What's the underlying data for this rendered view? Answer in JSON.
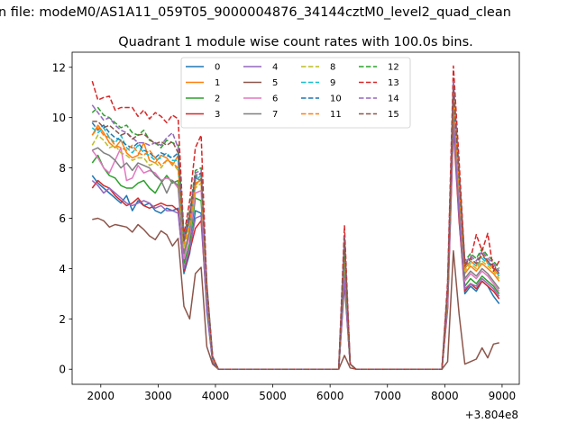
{
  "figure": {
    "suptitle": "n file: modeM0/AS1A11_059T05_9000004876_34144cztM0_level2_quad_clean",
    "title": "Quadrant 1 module wise count rates with 100.0s bins.",
    "offset_text": "+3.804e8"
  },
  "chart_data": {
    "type": "line",
    "title": "Quadrant 1 module wise count rates with 100.0s bins.",
    "xlabel": "",
    "ylabel": "",
    "x_offset": 380400000,
    "xlim": [
      1500,
      9300
    ],
    "ylim": [
      -0.6,
      12.6
    ],
    "xticks": [
      2000,
      3000,
      4000,
      5000,
      6000,
      7000,
      8000,
      9000
    ],
    "yticks": [
      0,
      2,
      4,
      6,
      8,
      10,
      12
    ],
    "grid": false,
    "legend": {
      "placement": "upper-center",
      "columns": 4
    },
    "x": [
      1850,
      1950,
      2050,
      2150,
      2250,
      2350,
      2450,
      2550,
      2650,
      2750,
      2850,
      2950,
      3050,
      3150,
      3250,
      3350,
      3450,
      3550,
      3650,
      3750,
      3850,
      3950,
      4050,
      4150,
      4250,
      4350,
      4450,
      4550,
      4650,
      4750,
      4850,
      4950,
      5050,
      5150,
      5250,
      5350,
      5450,
      5550,
      5650,
      5750,
      5850,
      5950,
      6050,
      6150,
      6250,
      6350,
      6450,
      6550,
      6650,
      6750,
      6850,
      6950,
      7050,
      7150,
      7250,
      7350,
      7450,
      7550,
      7650,
      7750,
      7850,
      7950,
      8050,
      8150,
      8250,
      8350,
      8450,
      8550,
      8650,
      8750,
      8850,
      8950
    ],
    "series": [
      {
        "name": "0",
        "color": "#1f77b4",
        "dash": "solid",
        "values": [
          7.7,
          7.4,
          7.2,
          7.0,
          6.8,
          6.6,
          6.9,
          6.3,
          6.7,
          6.5,
          6.6,
          6.3,
          6.2,
          6.4,
          6.3,
          6.4,
          3.8,
          4.6,
          6.3,
          6.2,
          2.3,
          0.3,
          0,
          0,
          0,
          0,
          0,
          0,
          0,
          0,
          0,
          0,
          0,
          0,
          0,
          0,
          0,
          0,
          0,
          0,
          0,
          0,
          0,
          0,
          3.4,
          0.2,
          0,
          0,
          0,
          0,
          0,
          0,
          0,
          0,
          0,
          0,
          0,
          0,
          0,
          0,
          0,
          0,
          2.5,
          9.9,
          6.0,
          3.0,
          3.3,
          3.1,
          3.5,
          3.3,
          2.9,
          2.6
        ]
      },
      {
        "name": "1",
        "color": "#ff7f0e",
        "dash": "solid",
        "values": [
          9.3,
          9.7,
          9.4,
          9.0,
          8.8,
          9.1,
          8.6,
          8.4,
          8.5,
          9.0,
          8.3,
          8.2,
          8.5,
          8.4,
          8.1,
          8.5,
          4.5,
          5.6,
          7.3,
          7.6,
          3.2,
          0.5,
          0,
          0,
          0,
          0,
          0,
          0,
          0,
          0,
          0,
          0,
          0,
          0,
          0,
          0,
          0,
          0,
          0,
          0,
          0,
          0,
          0,
          0,
          4.6,
          0.2,
          0,
          0,
          0,
          0,
          0,
          0,
          0,
          0,
          0,
          0,
          0,
          0,
          0,
          0,
          0,
          0,
          3.0,
          11.0,
          7.5,
          3.8,
          4.1,
          3.9,
          4.2,
          4.0,
          3.8,
          3.5
        ]
      },
      {
        "name": "2",
        "color": "#2ca02c",
        "dash": "solid",
        "values": [
          8.2,
          8.5,
          8.0,
          7.7,
          7.6,
          7.3,
          7.2,
          7.2,
          7.4,
          7.5,
          7.2,
          7.0,
          7.4,
          7.7,
          7.4,
          7.5,
          4.2,
          5.0,
          6.8,
          6.7,
          2.7,
          0.4,
          0,
          0,
          0,
          0,
          0,
          0,
          0,
          0,
          0,
          0,
          0,
          0,
          0,
          0,
          0,
          0,
          0,
          0,
          0,
          0,
          0,
          0,
          4.0,
          0.2,
          0,
          0,
          0,
          0,
          0,
          0,
          0,
          0,
          0,
          0,
          0,
          0,
          0,
          0,
          0,
          0,
          2.6,
          10.5,
          6.7,
          3.3,
          3.6,
          3.4,
          3.7,
          3.5,
          3.3,
          3.0
        ]
      },
      {
        "name": "3",
        "color": "#d62728",
        "dash": "solid",
        "values": [
          7.2,
          7.5,
          7.3,
          7.2,
          6.9,
          6.7,
          6.5,
          6.6,
          6.8,
          6.5,
          6.4,
          6.5,
          6.6,
          6.5,
          6.5,
          6.3,
          3.9,
          4.7,
          5.6,
          5.9,
          2.5,
          0.3,
          0,
          0,
          0,
          0,
          0,
          0,
          0,
          0,
          0,
          0,
          0,
          0,
          0,
          0,
          0,
          0,
          0,
          0,
          0,
          0,
          0,
          0,
          3.5,
          0.2,
          0,
          0,
          0,
          0,
          0,
          0,
          0,
          0,
          0,
          0,
          0,
          0,
          0,
          0,
          0,
          0,
          2.4,
          9.6,
          5.9,
          3.1,
          3.4,
          3.2,
          3.5,
          3.3,
          3.1,
          2.8
        ]
      },
      {
        "name": "4",
        "color": "#9467bd",
        "dash": "solid",
        "values": [
          7.5,
          7.3,
          7.0,
          7.2,
          7.0,
          6.8,
          6.6,
          6.5,
          6.6,
          6.7,
          6.6,
          6.4,
          6.5,
          6.3,
          6.3,
          6.2,
          4.0,
          4.8,
          6.0,
          6.1,
          2.4,
          0.3,
          0,
          0,
          0,
          0,
          0,
          0,
          0,
          0,
          0,
          0,
          0,
          0,
          0,
          0,
          0,
          0,
          0,
          0,
          0,
          0,
          0,
          0,
          3.6,
          0.2,
          0,
          0,
          0,
          0,
          0,
          0,
          0,
          0,
          0,
          0,
          0,
          0,
          0,
          0,
          0,
          0,
          2.5,
          9.8,
          6.1,
          3.2,
          3.4,
          3.3,
          3.6,
          3.4,
          3.2,
          2.9
        ]
      },
      {
        "name": "5",
        "color": "#8c564b",
        "dash": "solid",
        "values": [
          5.95,
          6.0,
          5.9,
          5.65,
          5.75,
          5.7,
          5.65,
          5.45,
          5.75,
          5.55,
          5.3,
          5.15,
          5.5,
          5.35,
          4.9,
          5.2,
          2.5,
          2.0,
          3.8,
          4.05,
          0.9,
          0.2,
          0,
          0,
          0,
          0,
          0,
          0,
          0,
          0,
          0,
          0,
          0,
          0,
          0,
          0,
          0,
          0,
          0,
          0,
          0,
          0,
          0,
          0,
          0.55,
          0.05,
          0,
          0,
          0,
          0,
          0,
          0,
          0,
          0,
          0,
          0,
          0,
          0,
          0,
          0,
          0,
          0,
          0.3,
          4.7,
          2.2,
          0.2,
          0.3,
          0.4,
          0.85,
          0.45,
          1.0,
          1.05
        ]
      },
      {
        "name": "6",
        "color": "#e377c2",
        "dash": "solid",
        "values": [
          8.7,
          8.4,
          8.0,
          7.8,
          8.3,
          8.8,
          7.5,
          7.6,
          8.1,
          7.8,
          7.9,
          7.8,
          7.5,
          7.6,
          7.5,
          7.2,
          4.4,
          5.3,
          7.0,
          7.1,
          2.9,
          0.4,
          0,
          0,
          0,
          0,
          0,
          0,
          0,
          0,
          0,
          0,
          0,
          0,
          0,
          0,
          0,
          0,
          0,
          0,
          0,
          0,
          0,
          0,
          4.4,
          0.2,
          0,
          0,
          0,
          0,
          0,
          0,
          0,
          0,
          0,
          0,
          0,
          0,
          0,
          0,
          0,
          0,
          2.8,
          10.7,
          7.0,
          3.5,
          3.8,
          3.6,
          3.9,
          3.7,
          3.4,
          3.1
        ]
      },
      {
        "name": "7",
        "color": "#7f7f7f",
        "dash": "solid",
        "values": [
          8.7,
          8.8,
          8.6,
          8.5,
          8.3,
          8.0,
          8.2,
          7.9,
          8.2,
          8.1,
          8.0,
          7.7,
          7.5,
          7.0,
          7.5,
          7.3,
          4.6,
          5.5,
          7.6,
          7.5,
          3.0,
          0.4,
          0,
          0,
          0,
          0,
          0,
          0,
          0,
          0,
          0,
          0,
          0,
          0,
          0,
          0,
          0,
          0,
          0,
          0,
          0,
          0,
          0,
          0,
          4.5,
          0.2,
          0,
          0,
          0,
          0,
          0,
          0,
          0,
          0,
          0,
          0,
          0,
          0,
          0,
          0,
          0,
          0,
          2.9,
          10.8,
          7.2,
          3.6,
          3.9,
          3.7,
          4.0,
          3.8,
          3.5,
          3.2
        ]
      },
      {
        "name": "8",
        "color": "#bcbd22",
        "dash": "dashed",
        "values": [
          8.9,
          9.3,
          9.1,
          8.8,
          8.9,
          8.6,
          8.5,
          8.3,
          8.4,
          8.4,
          8.1,
          8.2,
          8.0,
          8.3,
          8.2,
          7.9,
          4.8,
          5.7,
          7.2,
          7.4,
          3.1,
          0.4,
          0,
          0,
          0,
          0,
          0,
          0,
          0,
          0,
          0,
          0,
          0,
          0,
          0,
          0,
          0,
          0,
          0,
          0,
          0,
          0,
          0,
          0,
          4.6,
          0.2,
          0,
          0,
          0,
          0,
          0,
          0,
          0,
          0,
          0,
          0,
          0,
          0,
          0,
          0,
          0,
          0,
          3.0,
          10.9,
          7.3,
          3.9,
          4.2,
          4.0,
          4.3,
          4.1,
          3.9,
          3.6
        ]
      },
      {
        "name": "9",
        "color": "#17becf",
        "dash": "dashed",
        "values": [
          9.6,
          9.4,
          9.6,
          9.2,
          9.0,
          9.3,
          8.8,
          8.6,
          8.9,
          8.6,
          8.5,
          8.3,
          8.4,
          8.6,
          8.3,
          8.3,
          5.0,
          5.9,
          7.5,
          7.7,
          3.2,
          0.4,
          0,
          0,
          0,
          0,
          0,
          0,
          0,
          0,
          0,
          0,
          0,
          0,
          0,
          0,
          0,
          0,
          0,
          0,
          0,
          0,
          0,
          0,
          4.7,
          0.2,
          0,
          0,
          0,
          0,
          0,
          0,
          0,
          0,
          0,
          0,
          0,
          0,
          0,
          0,
          0,
          0,
          3.1,
          11.1,
          7.5,
          4.0,
          4.3,
          4.1,
          4.4,
          4.2,
          4.0,
          3.7
        ]
      },
      {
        "name": "10",
        "color": "#1f77b4",
        "dash": "dashed",
        "values": [
          9.8,
          9.5,
          9.7,
          9.4,
          9.2,
          9.1,
          8.9,
          8.8,
          9.0,
          8.7,
          8.6,
          8.4,
          8.6,
          8.5,
          8.4,
          8.6,
          5.1,
          6.0,
          7.6,
          7.8,
          3.3,
          0.4,
          0,
          0,
          0,
          0,
          0,
          0,
          0,
          0,
          0,
          0,
          0,
          0,
          0,
          0,
          0,
          0,
          0,
          0,
          0,
          0,
          0,
          0,
          4.8,
          0.2,
          0,
          0,
          0,
          0,
          0,
          0,
          0,
          0,
          0,
          0,
          0,
          0,
          0,
          0,
          0,
          0,
          3.1,
          11.0,
          7.6,
          4.1,
          4.4,
          4.2,
          4.5,
          4.3,
          4.0,
          3.8
        ]
      },
      {
        "name": "11",
        "color": "#ff7f0e",
        "dash": "dashed",
        "values": [
          9.3,
          9.6,
          9.3,
          9.2,
          8.9,
          8.8,
          8.7,
          8.9,
          8.6,
          8.5,
          8.7,
          8.4,
          8.1,
          8.3,
          8.2,
          8.0,
          5.0,
          5.8,
          7.4,
          7.5,
          3.2,
          0.4,
          0,
          0,
          0,
          0,
          0,
          0,
          0,
          0,
          0,
          0,
          0,
          0,
          0,
          0,
          0,
          0,
          0,
          0,
          0,
          0,
          0,
          0,
          4.7,
          0.2,
          0,
          0,
          0,
          0,
          0,
          0,
          0,
          0,
          0,
          0,
          0,
          0,
          0,
          0,
          0,
          0,
          3.0,
          10.8,
          7.4,
          4.0,
          4.3,
          4.1,
          4.6,
          4.2,
          4.0,
          3.7
        ]
      },
      {
        "name": "12",
        "color": "#2ca02c",
        "dash": "dashed",
        "values": [
          10.2,
          10.4,
          10.1,
          10.0,
          9.8,
          9.6,
          9.7,
          9.4,
          9.3,
          9.5,
          9.1,
          9.0,
          8.8,
          9.1,
          9.0,
          8.9,
          5.3,
          6.3,
          7.9,
          8.0,
          3.4,
          0.5,
          0,
          0,
          0,
          0,
          0,
          0,
          0,
          0,
          0,
          0,
          0,
          0,
          0,
          0,
          0,
          0,
          0,
          0,
          0,
          0,
          0,
          0,
          5.0,
          0.2,
          0,
          0,
          0,
          0,
          0,
          0,
          0,
          0,
          0,
          0,
          0,
          0,
          0,
          0,
          0,
          0,
          3.3,
          11.3,
          7.9,
          4.3,
          4.6,
          4.4,
          4.8,
          4.5,
          4.3,
          4.0
        ]
      },
      {
        "name": "13",
        "color": "#d62728",
        "dash": "dashed",
        "values": [
          11.45,
          10.7,
          10.8,
          10.85,
          10.3,
          10.4,
          10.4,
          10.4,
          10.05,
          10.3,
          9.95,
          10.2,
          10.05,
          9.8,
          10.1,
          9.95,
          5.3,
          6.7,
          8.8,
          9.3,
          3.3,
          0.5,
          0,
          0,
          0,
          0,
          0,
          0,
          0,
          0,
          0,
          0,
          0,
          0,
          0,
          0,
          0,
          0,
          0,
          0,
          0,
          0,
          0,
          0,
          5.7,
          0.2,
          0,
          0,
          0,
          0,
          0,
          0,
          0,
          0,
          0,
          0,
          0,
          0,
          0,
          0,
          0,
          0,
          3.5,
          12.05,
          8.3,
          4.2,
          4.4,
          5.35,
          4.7,
          5.4,
          3.9,
          4.3
        ]
      },
      {
        "name": "14",
        "color": "#9467bd",
        "dash": "dashed",
        "values": [
          10.5,
          10.2,
          9.9,
          10.0,
          9.7,
          9.5,
          9.4,
          9.2,
          9.0,
          9.0,
          8.9,
          9.0,
          8.9,
          9.2,
          9.4,
          8.8,
          5.2,
          6.2,
          7.8,
          7.9,
          3.4,
          0.5,
          0,
          0,
          0,
          0,
          0,
          0,
          0,
          0,
          0,
          0,
          0,
          0,
          0,
          0,
          0,
          0,
          0,
          0,
          0,
          0,
          0,
          0,
          5.3,
          0.2,
          0,
          0,
          0,
          0,
          0,
          0,
          0,
          0,
          0,
          0,
          0,
          0,
          0,
          0,
          0,
          0,
          3.3,
          11.5,
          7.8,
          4.2,
          4.5,
          4.3,
          4.7,
          4.4,
          4.2,
          3.9
        ]
      },
      {
        "name": "15",
        "color": "#8c564b",
        "dash": "dashed",
        "values": [
          9.85,
          9.85,
          9.6,
          9.7,
          9.5,
          9.3,
          9.4,
          9.15,
          9.3,
          9.35,
          9.15,
          8.95,
          9.05,
          8.9,
          9.05,
          8.6,
          5.1,
          6.1,
          7.7,
          7.8,
          3.3,
          0.5,
          0,
          0,
          0,
          0,
          0,
          0,
          0,
          0,
          0,
          0,
          0,
          0,
          0,
          0,
          0,
          0,
          0,
          0,
          0,
          0,
          0,
          0,
          5.2,
          0.2,
          0,
          0,
          0,
          0,
          0,
          0,
          0,
          0,
          0,
          0,
          0,
          0,
          0,
          0,
          0,
          0,
          3.2,
          11.2,
          7.7,
          4.1,
          4.4,
          4.2,
          4.6,
          4.3,
          4.1,
          3.8
        ]
      }
    ]
  }
}
